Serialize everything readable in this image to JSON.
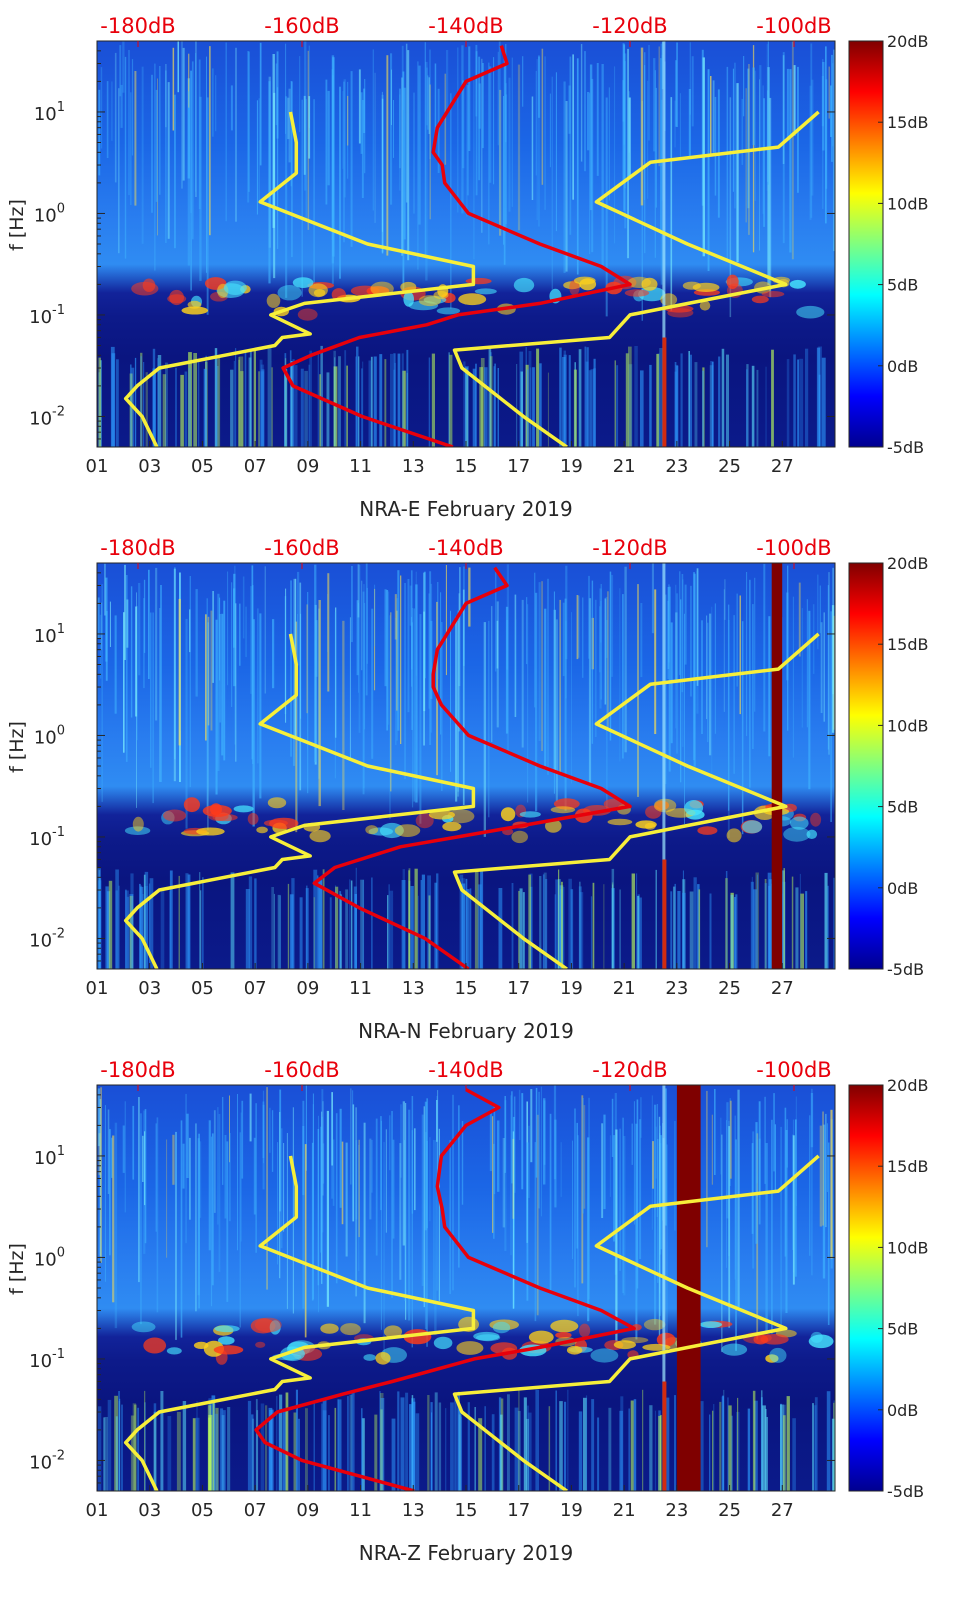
{
  "chart_data": [
    {
      "type": "heatmap",
      "station": "NRA-E",
      "xlabel": "NRA-E February 2019",
      "ylabel": "f [Hz]",
      "x_ticks": [
        "01",
        "03",
        "05",
        "07",
        "09",
        "11",
        "13",
        "15",
        "17",
        "19",
        "21",
        "23",
        "25",
        "27"
      ],
      "x_range_days": [
        1,
        29
      ],
      "y_scale": "log",
      "y_range_hz": [
        0.005,
        50
      ],
      "y_ticks": [
        {
          "value": 0.01,
          "label": "10",
          "exp": "-2"
        },
        {
          "value": 0.1,
          "label": "10",
          "exp": "-1"
        },
        {
          "value": 1,
          "label": "10",
          "exp": "0"
        },
        {
          "value": 10,
          "label": "10",
          "exp": "1"
        }
      ],
      "top_axis_labels": [
        "-180dB",
        "-160dB",
        "-140dB",
        "-120dB",
        "-100dB"
      ],
      "top_axis_range_db": [
        -185,
        -95
      ],
      "colorbar_labels": [
        "20dB",
        "15dB",
        "10dB",
        "5dB",
        "0dB",
        "-5dB"
      ],
      "colorbar_range_db": [
        -5,
        20
      ],
      "red_band_days": [],
      "red_curve_db_vs_freq": [
        [
          0.005,
          -141.6
        ],
        [
          0.01,
          -152.7
        ],
        [
          0.02,
          -161.1
        ],
        [
          0.03,
          -162.3
        ],
        [
          0.04,
          -158.9
        ],
        [
          0.06,
          -153.0
        ],
        [
          0.08,
          -144.8
        ],
        [
          0.1,
          -141.0
        ],
        [
          0.13,
          -131.0
        ],
        [
          0.2,
          -120.0
        ],
        [
          0.3,
          -123.5
        ],
        [
          0.5,
          -131.0
        ],
        [
          1,
          -139.7
        ],
        [
          2,
          -142.6
        ],
        [
          3,
          -142.9
        ],
        [
          4,
          -144.0
        ],
        [
          7,
          -143.5
        ],
        [
          20,
          -140.0
        ],
        [
          30,
          -135.0
        ],
        [
          45,
          -135.7
        ]
      ],
      "yellow_curves_db_vs_freq": [
        [
          [
            0.005,
            -177.7
          ],
          [
            0.01,
            -179.5
          ],
          [
            0.015,
            -181.5
          ],
          [
            0.02,
            -180.1
          ],
          [
            0.03,
            -177.4
          ],
          [
            0.05,
            -163.3
          ],
          [
            0.06,
            -162.4
          ],
          [
            0.065,
            -159.0
          ],
          [
            0.1,
            -163.8
          ],
          [
            0.13,
            -159.7
          ],
          [
            0.2,
            -139.1
          ],
          [
            0.3,
            -139.1
          ],
          [
            0.5,
            -152.0
          ],
          [
            1.3,
            -165.1
          ],
          [
            2.5,
            -160.7
          ],
          [
            5,
            -160.7
          ],
          [
            10,
            -161.4
          ]
        ],
        [
          [
            0.005,
            -127.7
          ],
          [
            0.01,
            -133.0
          ],
          [
            0.03,
            -140.5
          ],
          [
            0.045,
            -141.4
          ],
          [
            0.06,
            -122.5
          ],
          [
            0.1,
            -120.0
          ],
          [
            0.13,
            -112.9
          ],
          [
            0.2,
            -101.0
          ],
          [
            0.5,
            -113.0
          ],
          [
            1.3,
            -124.1
          ],
          [
            3.2,
            -117.5
          ],
          [
            4.5,
            -101.9
          ],
          [
            10,
            -97.0
          ]
        ]
      ]
    },
    {
      "type": "heatmap",
      "station": "NRA-N",
      "xlabel": "NRA-N February 2019",
      "ylabel": "f [Hz]",
      "x_ticks": [
        "01",
        "03",
        "05",
        "07",
        "09",
        "11",
        "13",
        "15",
        "17",
        "19",
        "21",
        "23",
        "25",
        "27"
      ],
      "x_range_days": [
        1,
        29
      ],
      "y_scale": "log",
      "y_range_hz": [
        0.005,
        50
      ],
      "y_ticks": [
        {
          "value": 0.01,
          "label": "10",
          "exp": "-2"
        },
        {
          "value": 0.1,
          "label": "10",
          "exp": "-1"
        },
        {
          "value": 1,
          "label": "10",
          "exp": "0"
        },
        {
          "value": 10,
          "label": "10",
          "exp": "1"
        }
      ],
      "top_axis_labels": [
        "-180dB",
        "-160dB",
        "-140dB",
        "-120dB",
        "-100dB"
      ],
      "top_axis_range_db": [
        -185,
        -95
      ],
      "colorbar_labels": [
        "20dB",
        "15dB",
        "10dB",
        "5dB",
        "0dB",
        "-5dB"
      ],
      "colorbar_range_db": [
        -5,
        20
      ],
      "red_band_days": [
        26.6,
        27.0
      ],
      "red_curve_db_vs_freq": [
        [
          0.005,
          -139.7
        ],
        [
          0.01,
          -145.0
        ],
        [
          0.02,
          -153.0
        ],
        [
          0.035,
          -158.5
        ],
        [
          0.05,
          -156.0
        ],
        [
          0.08,
          -148.0
        ],
        [
          0.1,
          -141.0
        ],
        [
          0.13,
          -133.0
        ],
        [
          0.2,
          -120.0
        ],
        [
          0.3,
          -123.5
        ],
        [
          0.5,
          -131.0
        ],
        [
          1,
          -139.7
        ],
        [
          2,
          -143.0
        ],
        [
          3,
          -144.0
        ],
        [
          4,
          -144.0
        ],
        [
          7,
          -143.5
        ],
        [
          20,
          -140.0
        ],
        [
          30,
          -135.0
        ],
        [
          45,
          -136.5
        ]
      ],
      "yellow_curves_db_vs_freq": [
        [
          [
            0.005,
            -177.7
          ],
          [
            0.01,
            -179.5
          ],
          [
            0.015,
            -181.5
          ],
          [
            0.02,
            -180.1
          ],
          [
            0.03,
            -177.4
          ],
          [
            0.05,
            -163.3
          ],
          [
            0.06,
            -162.4
          ],
          [
            0.065,
            -159.0
          ],
          [
            0.1,
            -163.8
          ],
          [
            0.13,
            -159.7
          ],
          [
            0.2,
            -139.1
          ],
          [
            0.3,
            -139.1
          ],
          [
            0.5,
            -152.0
          ],
          [
            1.3,
            -165.1
          ],
          [
            2.5,
            -160.7
          ],
          [
            5,
            -160.7
          ],
          [
            10,
            -161.4
          ]
        ],
        [
          [
            0.005,
            -127.7
          ],
          [
            0.01,
            -133.0
          ],
          [
            0.03,
            -140.5
          ],
          [
            0.045,
            -141.4
          ],
          [
            0.06,
            -122.5
          ],
          [
            0.1,
            -120.0
          ],
          [
            0.13,
            -112.9
          ],
          [
            0.2,
            -101.0
          ],
          [
            0.5,
            -113.0
          ],
          [
            1.3,
            -124.1
          ],
          [
            3.2,
            -117.5
          ],
          [
            4.5,
            -101.9
          ],
          [
            10,
            -97.0
          ]
        ]
      ]
    },
    {
      "type": "heatmap",
      "station": "NRA-Z",
      "xlabel": "NRA-Z February 2019",
      "ylabel": "f [Hz]",
      "x_ticks": [
        "01",
        "03",
        "05",
        "07",
        "09",
        "11",
        "13",
        "15",
        "17",
        "19",
        "21",
        "23",
        "25",
        "27"
      ],
      "x_range_days": [
        1,
        29
      ],
      "y_scale": "log",
      "y_range_hz": [
        0.005,
        50
      ],
      "y_ticks": [
        {
          "value": 0.01,
          "label": "10",
          "exp": "-2"
        },
        {
          "value": 0.1,
          "label": "10",
          "exp": "-1"
        },
        {
          "value": 1,
          "label": "10",
          "exp": "0"
        },
        {
          "value": 10,
          "label": "10",
          "exp": "1"
        }
      ],
      "top_axis_labels": [
        "-180dB",
        "-160dB",
        "-140dB",
        "-120dB",
        "-100dB"
      ],
      "top_axis_range_db": [
        -185,
        -95
      ],
      "colorbar_labels": [
        "20dB",
        "15dB",
        "10dB",
        "5dB",
        "0dB",
        "-5dB"
      ],
      "colorbar_range_db": [
        -5,
        20
      ],
      "red_band_days": [
        23.0,
        23.9
      ],
      "red_curve_db_vs_freq": [
        [
          0.005,
          -146.3
        ],
        [
          0.01,
          -160.0
        ],
        [
          0.015,
          -164.5
        ],
        [
          0.02,
          -165.6
        ],
        [
          0.03,
          -163.0
        ],
        [
          0.045,
          -155.0
        ],
        [
          0.06,
          -149.0
        ],
        [
          0.1,
          -139.0
        ],
        [
          0.13,
          -131.0
        ],
        [
          0.2,
          -119.5
        ],
        [
          0.3,
          -123.5
        ],
        [
          0.5,
          -131.0
        ],
        [
          1,
          -139.7
        ],
        [
          2,
          -142.6
        ],
        [
          3,
          -142.9
        ],
        [
          5,
          -143.5
        ],
        [
          10,
          -143.0
        ],
        [
          20,
          -140.0
        ],
        [
          30,
          -136.0
        ],
        [
          45,
          -140.0
        ]
      ],
      "yellow_curves_db_vs_freq": [
        [
          [
            0.005,
            -177.7
          ],
          [
            0.01,
            -179.5
          ],
          [
            0.015,
            -181.5
          ],
          [
            0.02,
            -180.1
          ],
          [
            0.03,
            -177.4
          ],
          [
            0.05,
            -163.3
          ],
          [
            0.06,
            -162.4
          ],
          [
            0.065,
            -159.0
          ],
          [
            0.1,
            -163.8
          ],
          [
            0.13,
            -159.7
          ],
          [
            0.2,
            -139.1
          ],
          [
            0.3,
            -139.1
          ],
          [
            0.5,
            -152.0
          ],
          [
            1.3,
            -165.1
          ],
          [
            2.5,
            -160.7
          ],
          [
            5,
            -160.7
          ],
          [
            10,
            -161.4
          ]
        ],
        [
          [
            0.005,
            -127.7
          ],
          [
            0.01,
            -133.0
          ],
          [
            0.03,
            -140.5
          ],
          [
            0.045,
            -141.4
          ],
          [
            0.06,
            -122.5
          ],
          [
            0.1,
            -120.0
          ],
          [
            0.13,
            -112.9
          ],
          [
            0.2,
            -101.0
          ],
          [
            0.5,
            -113.0
          ],
          [
            1.3,
            -124.1
          ],
          [
            3.2,
            -117.5
          ],
          [
            4.5,
            -101.9
          ],
          [
            10,
            -97.0
          ]
        ]
      ]
    }
  ]
}
